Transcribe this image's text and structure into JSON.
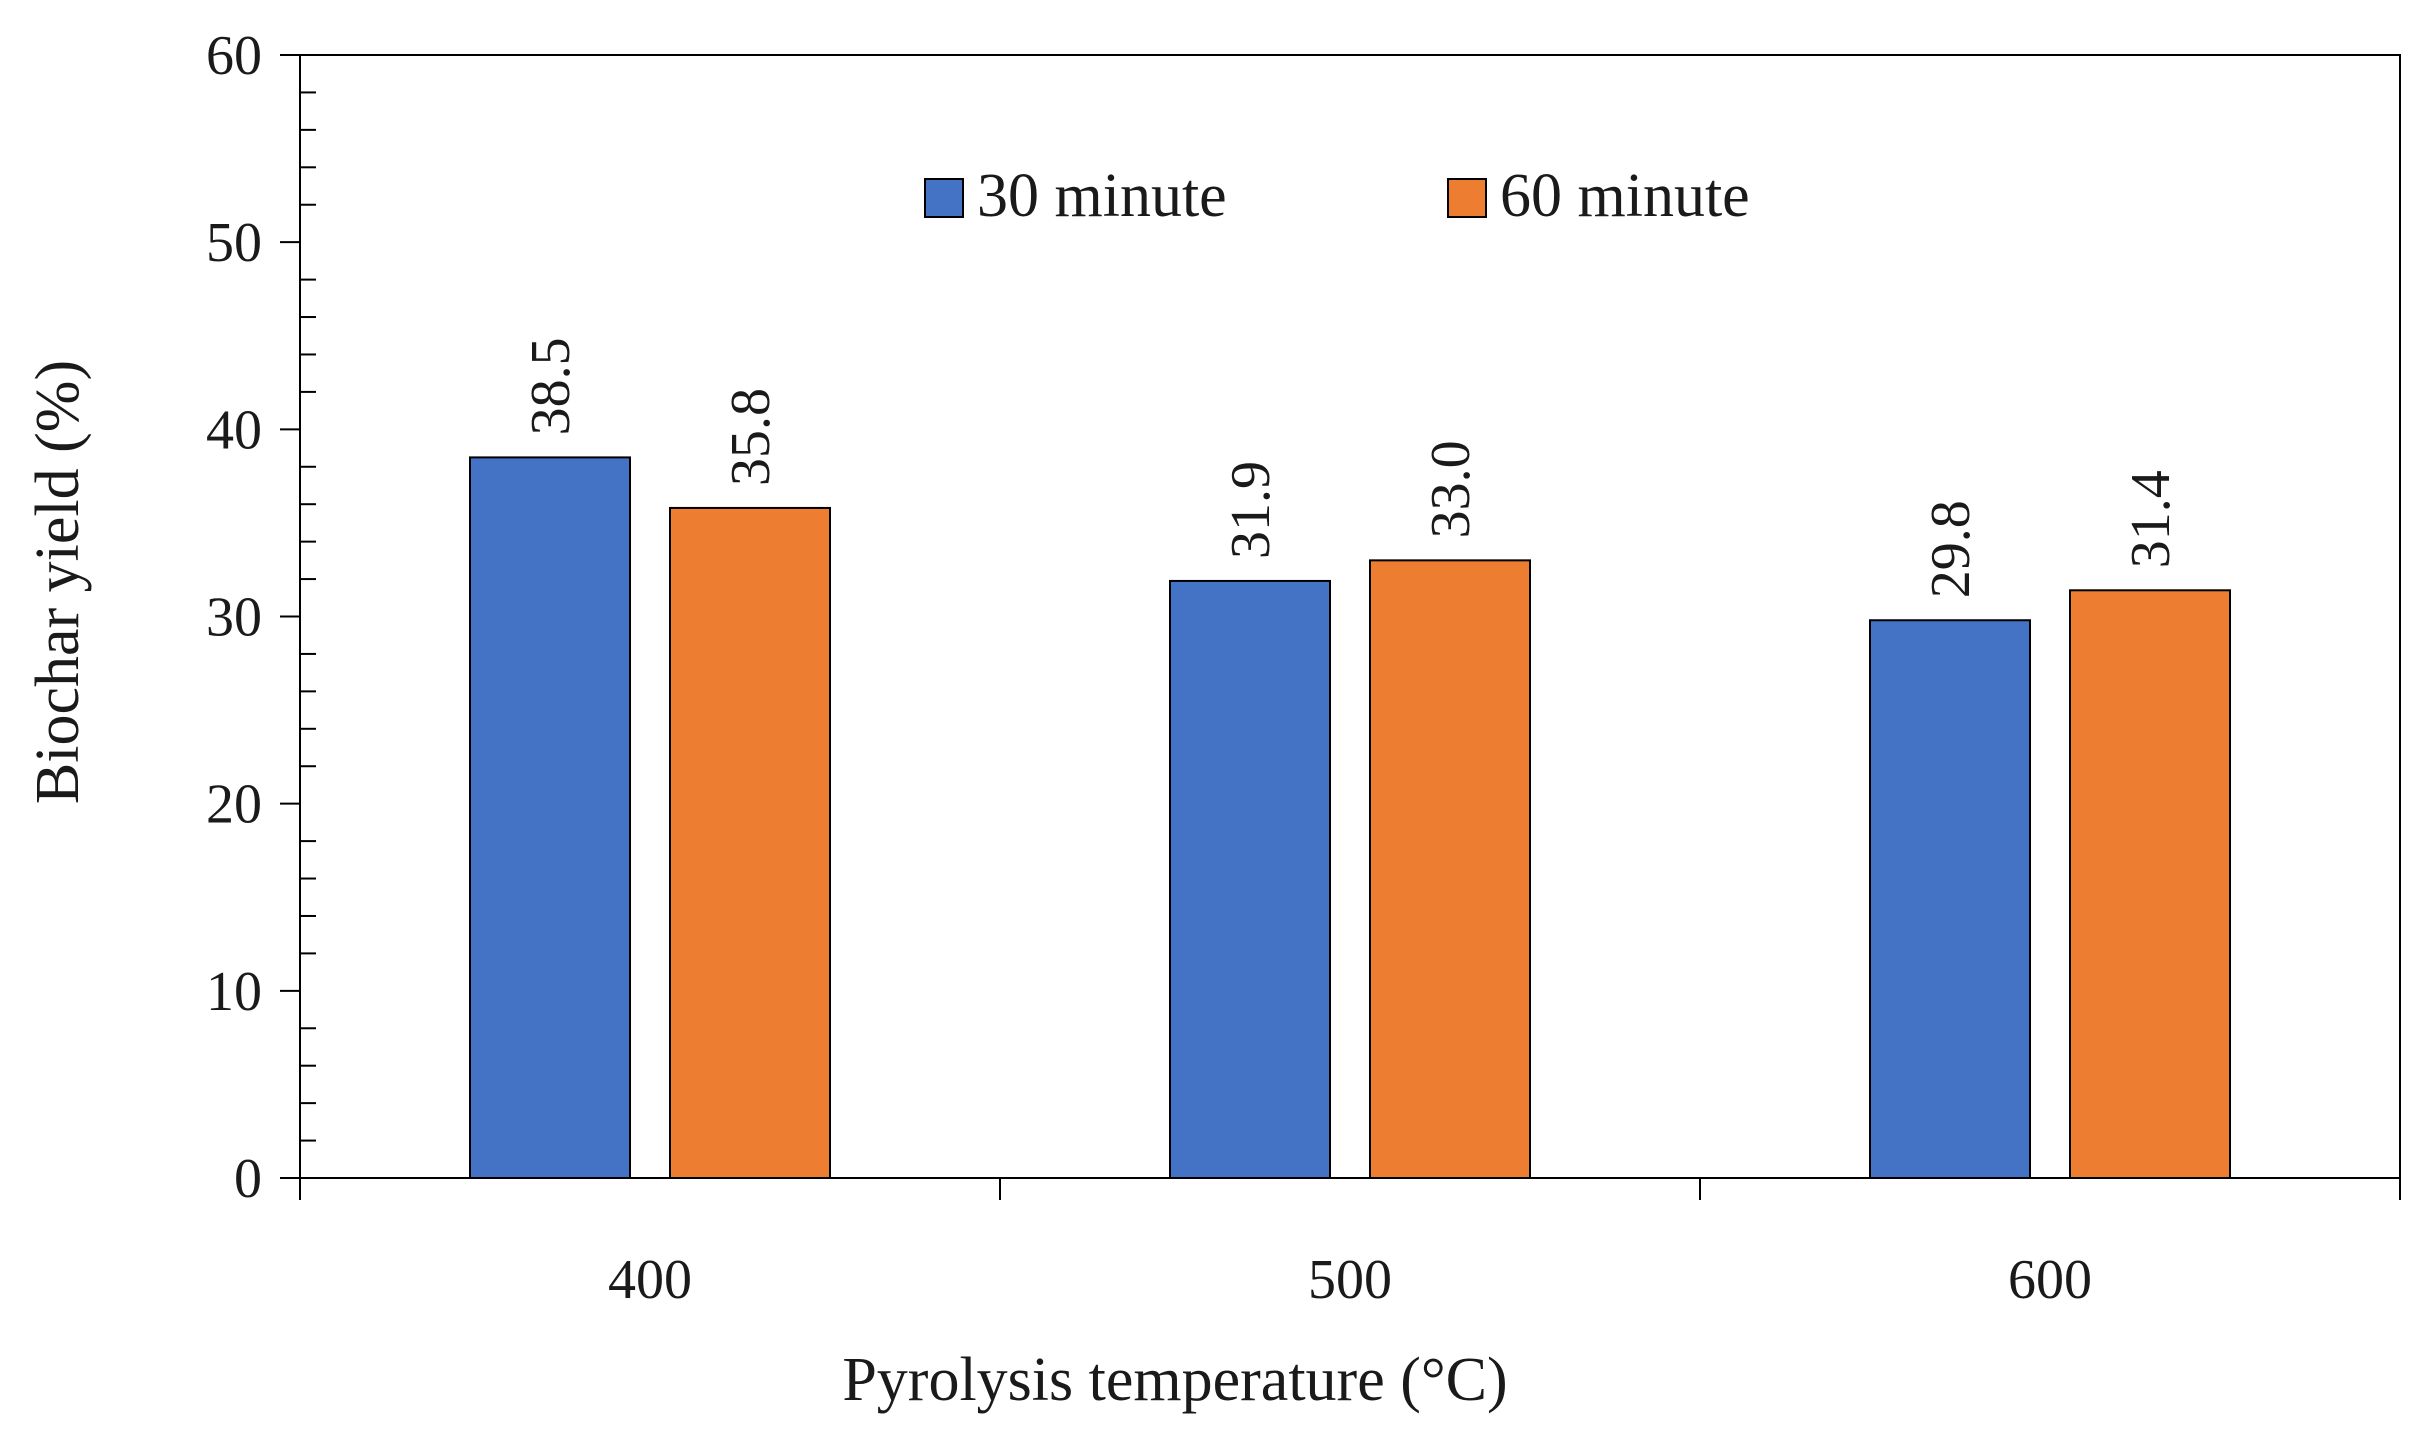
{
  "chart_data": {
    "type": "bar",
    "title": "",
    "categories": [
      "400",
      "500",
      "600"
    ],
    "series": [
      {
        "name": "30 minute",
        "color": "#4472c4",
        "values": [
          38.5,
          31.9,
          29.8
        ],
        "labels": [
          "38.5",
          "31.9",
          "29.8"
        ]
      },
      {
        "name": "60 minute",
        "color": "#ed7d31",
        "values": [
          35.8,
          33.0,
          31.4
        ],
        "labels": [
          "35.8",
          "33.0",
          "31.4"
        ]
      }
    ],
    "xlabel": "Pyrolysis temperature  (°C)",
    "ylabel": "Biochar yield (%)",
    "ylim": [
      0,
      60
    ],
    "yticks": [
      0,
      10,
      20,
      30,
      40,
      50,
      60
    ],
    "ytick_labels": [
      "0",
      "10",
      "20",
      "30",
      "40",
      "50",
      "60"
    ],
    "minor_tick_step": 2,
    "legend_position": "top-center",
    "grid": false
  }
}
